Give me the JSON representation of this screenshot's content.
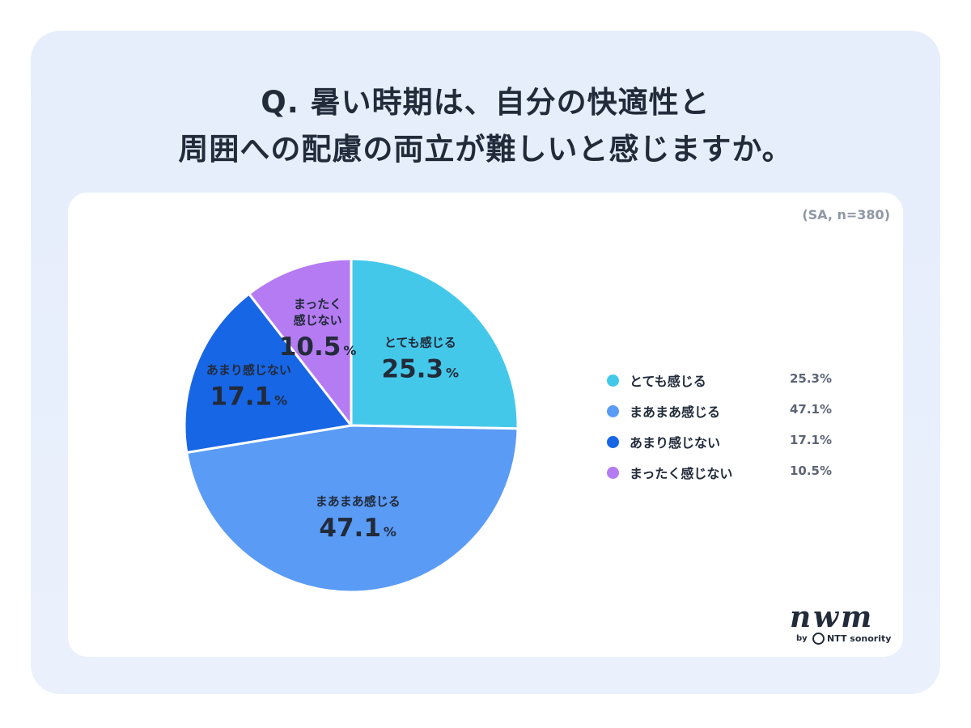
{
  "title": {
    "line1": "Q. 暑い時期は、自分の快適性と",
    "line2": "周囲への配慮の両立が難しいと感じますか。"
  },
  "sample_note": "(SA, n=380)",
  "chart_data": {
    "type": "pie",
    "unit": "%",
    "slices": [
      {
        "label": "とても感じる",
        "label_lines": [
          "とても感じる"
        ],
        "value": 25.3,
        "value_text": "25.3",
        "color": "#44c8ea"
      },
      {
        "label": "まあまあ感じる",
        "label_lines": [
          "まあまあ感じる"
        ],
        "value": 47.1,
        "value_text": "47.1",
        "color": "#5a9bf6"
      },
      {
        "label": "あまり感じない",
        "label_lines": [
          "あまり感じない"
        ],
        "value": 17.1,
        "value_text": "17.1",
        "color": "#1766e6"
      },
      {
        "label": "まったく感じない",
        "label_lines": [
          "まったく",
          "感じない"
        ],
        "value": 10.5,
        "value_text": "10.5",
        "color": "#b57bf3"
      }
    ],
    "legend": [
      {
        "label": "とても感じる",
        "value_text": "25.3%"
      },
      {
        "label": "まあまあ感じる",
        "value_text": "47.1%"
      },
      {
        "label": "あまり感じない",
        "value_text": "17.1%"
      },
      {
        "label": "まったく感じない",
        "value_text": "10.5%"
      }
    ],
    "legend_placement": "right"
  },
  "logo": {
    "mark": "nwm",
    "by": "by",
    "company": "NTT sonority"
  }
}
